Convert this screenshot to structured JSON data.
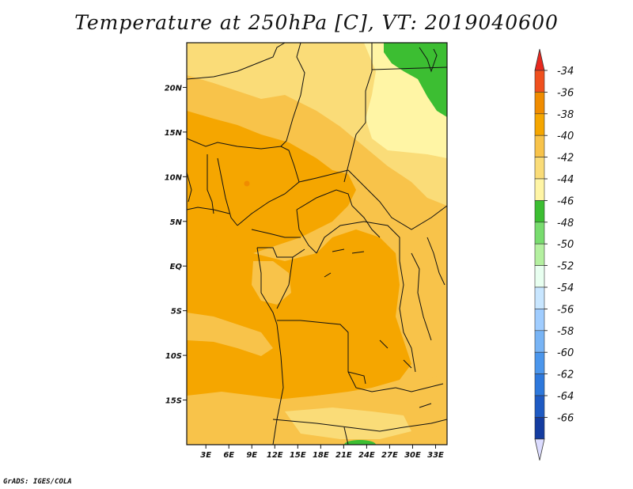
{
  "title": "Temperature at 250hPa [C], VT: 2019040600",
  "credit": "GrADS: IGES/COLA",
  "chart_data": {
    "type": "heatmap",
    "title": "Temperature at 250hPa [C], VT: 2019040600",
    "xlabel": "",
    "ylabel": "",
    "x_ticks": [
      "3E",
      "6E",
      "9E",
      "12E",
      "15E",
      "18E",
      "21E",
      "24E",
      "27E",
      "30E",
      "33E"
    ],
    "x_tick_values": [
      3,
      6,
      9,
      12,
      15,
      18,
      21,
      24,
      27,
      30,
      33
    ],
    "y_ticks": [
      "20N",
      "15N",
      "10N",
      "5N",
      "EQ",
      "5S",
      "10S",
      "15S"
    ],
    "y_tick_values": [
      20,
      15,
      10,
      5,
      0,
      -5,
      -10,
      -15
    ],
    "xlim": [
      0.5,
      34.5
    ],
    "ylim": [
      -20,
      25
    ],
    "colorbar": {
      "labels": [
        "-34",
        "-36",
        "-38",
        "-40",
        "-42",
        "-44",
        "-46",
        "-48",
        "-50",
        "-52",
        "-54",
        "-56",
        "-58",
        "-60",
        "-62",
        "-64",
        "-66"
      ],
      "colors": [
        "#f0501e",
        "#f08c00",
        "#f5a600",
        "#f8c34a",
        "#fadc78",
        "#fff5a5",
        "#3cbe32",
        "#78dc6e",
        "#b4f0a0",
        "#e8fff0",
        "#c8e6ff",
        "#a0cdff",
        "#78b4f5",
        "#4b96ec",
        "#2d78dc",
        "#1e5ac3",
        "#143ca0",
        "#0a1e78"
      ],
      "over_color": "#e8281e",
      "under_color": "#dcdcff"
    },
    "regions": [
      {
        "range": "-38 to -36",
        "color": "#f5a600",
        "description": "Southwest and central Africa (Nigeria, Gabon, Congo basin, Angola)"
      },
      {
        "range": "-40 to -38",
        "color": "#f8c34a",
        "description": "Sahel, western Sudan, southern Africa"
      },
      {
        "range": "-42 to -40",
        "color": "#fadc78",
        "description": "Northern Sahara, Horn region margins"
      },
      {
        "range": "-44 to -42",
        "color": "#fff5a5",
        "description": "Northeast Africa (Egypt/Sudan)"
      },
      {
        "range": "-46 to -44",
        "color": "#3cbe32",
        "description": "Red Sea region northeast; small patch at south edge"
      }
    ]
  }
}
